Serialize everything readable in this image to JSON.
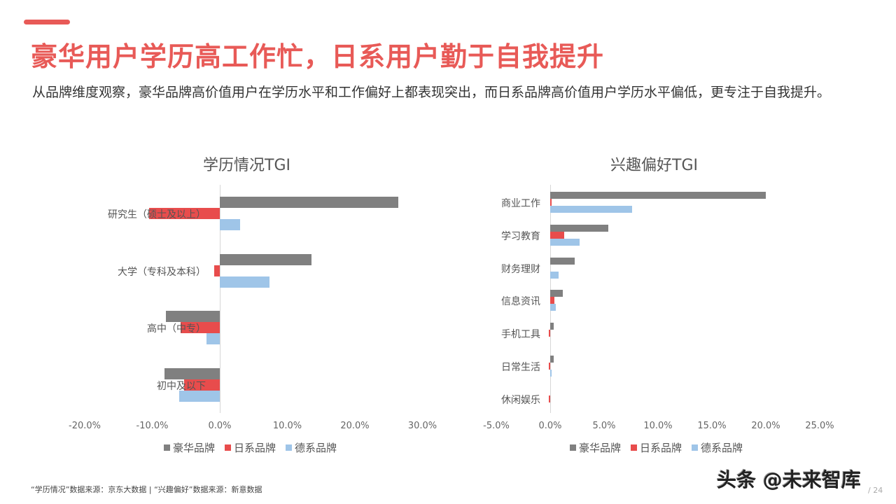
{
  "header": {
    "title": "豪华用户学历高工作忙，日系用户勤于自我提升",
    "subtitle": "从品牌维度观察，豪华品牌高价值用户在学历水平和工作偏好上都表现突出，而日系品牌高价值用户学历水平偏低，更专注于自我提升。",
    "accent_color": "#e85a57"
  },
  "legend": [
    {
      "label": "豪华品牌",
      "color": "#808080"
    },
    {
      "label": "日系品牌",
      "color": "#e84c4c"
    },
    {
      "label": "德系品牌",
      "color": "#9fc5e8"
    }
  ],
  "chart_data": [
    {
      "type": "bar",
      "orientation": "horizontal",
      "title": "学历情况TGI",
      "categories": [
        "研究生（硕士及以上）",
        "大学（专科及本科）",
        "高中（中专）",
        "初中及以下"
      ],
      "series": [
        {
          "name": "豪华品牌",
          "color": "#808080",
          "values": [
            26.4,
            13.6,
            -8.0,
            -8.2
          ]
        },
        {
          "name": "日系品牌",
          "color": "#e84c4c",
          "values": [
            -10.5,
            -0.8,
            -5.8,
            -5.3
          ]
        },
        {
          "name": "德系品牌",
          "color": "#9fc5e8",
          "values": [
            3.0,
            7.4,
            -2.0,
            -6.0
          ]
        }
      ],
      "xlim": [
        -20,
        30
      ],
      "xticks": [
        "-20.0%",
        "-10.0%",
        "0.0%",
        "10.0%",
        "20.0%",
        "30.0%"
      ],
      "grid": false,
      "legend_position": "bottom",
      "unit": "%"
    },
    {
      "type": "bar",
      "orientation": "horizontal",
      "title": "兴趣偏好TGI",
      "categories": [
        "商业工作",
        "学习教育",
        "财务理财",
        "信息资讯",
        "手机工具",
        "日常生活",
        "休闲娱乐"
      ],
      "series": [
        {
          "name": "豪华品牌",
          "color": "#808080",
          "values": [
            20.0,
            5.4,
            2.3,
            1.2,
            0.3,
            0.3,
            0.0
          ]
        },
        {
          "name": "日系品牌",
          "color": "#e84c4c",
          "values": [
            0.1,
            1.3,
            0.0,
            0.4,
            -0.1,
            -0.1,
            -0.1
          ]
        },
        {
          "name": "德系品牌",
          "color": "#9fc5e8",
          "values": [
            7.6,
            2.7,
            0.8,
            0.5,
            0.0,
            0.05,
            0.0
          ]
        }
      ],
      "xlim": [
        -5,
        25
      ],
      "xticks": [
        "-5.0%",
        "0.0%",
        "5.0%",
        "10.0%",
        "15.0%",
        "20.0%",
        "25.0%"
      ],
      "grid": false,
      "legend_position": "bottom",
      "unit": "%"
    }
  ],
  "footer": {
    "source_text": "“学历情况”数据来源：京东大数据  |  “兴趣偏好”数据来源：新意数据"
  },
  "watermark": "头条 @未来智库",
  "page_number": "/ 24"
}
